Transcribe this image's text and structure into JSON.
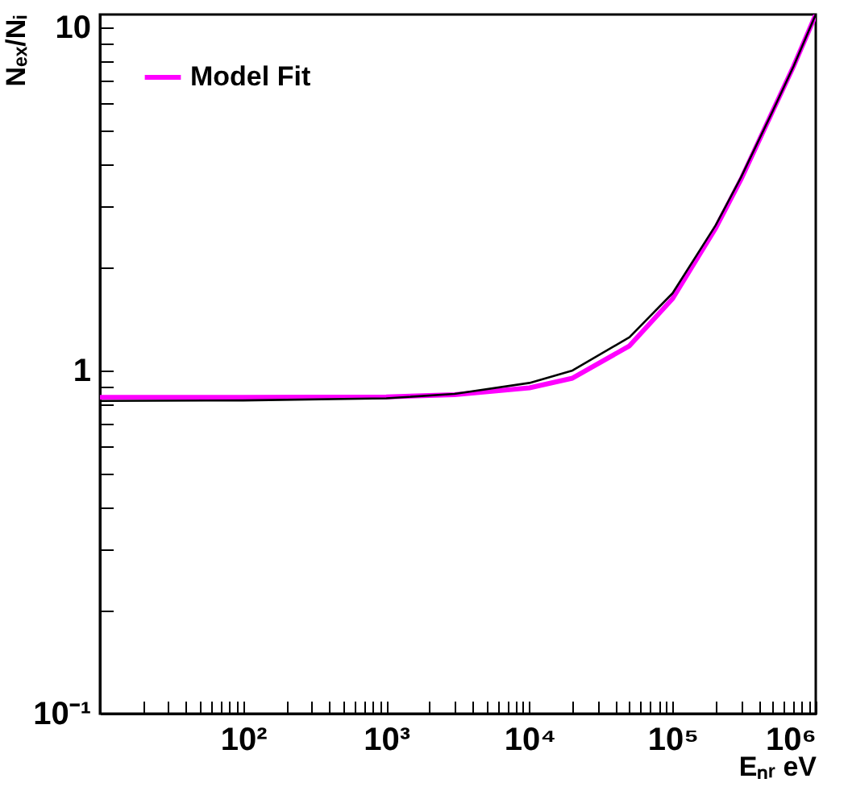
{
  "chart_data": {
    "type": "line",
    "xlabel": "Eₙᵣ eV",
    "ylabel": "Nₑₓ/Nᵢ",
    "log": "xy",
    "legend": "top left",
    "line_style": "solid",
    "marker": "none",
    "xlim": [
      10,
      1000000
    ],
    "ylim": [
      0.1,
      10.9
    ],
    "xticks": [
      {
        "value": 20,
        "label": null
      },
      {
        "value": 30,
        "label": null
      },
      {
        "value": 40,
        "label": null
      },
      {
        "value": 50,
        "label": null
      },
      {
        "value": 60,
        "label": null
      },
      {
        "value": 70,
        "label": null
      },
      {
        "value": 80,
        "label": null
      },
      {
        "value": 90,
        "label": null
      },
      {
        "value": 100,
        "label": "10²"
      },
      {
        "value": 200,
        "label": null
      },
      {
        "value": 300,
        "label": null
      },
      {
        "value": 400,
        "label": null
      },
      {
        "value": 500,
        "label": null
      },
      {
        "value": 600,
        "label": null
      },
      {
        "value": 700,
        "label": null
      },
      {
        "value": 800,
        "label": null
      },
      {
        "value": 900,
        "label": null
      },
      {
        "value": 1000,
        "label": "10³"
      },
      {
        "value": 2000,
        "label": null
      },
      {
        "value": 3000,
        "label": null
      },
      {
        "value": 4000,
        "label": null
      },
      {
        "value": 5000,
        "label": null
      },
      {
        "value": 6000,
        "label": null
      },
      {
        "value": 7000,
        "label": null
      },
      {
        "value": 8000,
        "label": null
      },
      {
        "value": 9000,
        "label": null
      },
      {
        "value": 10000,
        "label": "10⁴"
      },
      {
        "value": 20000,
        "label": null
      },
      {
        "value": 30000,
        "label": null
      },
      {
        "value": 40000,
        "label": null
      },
      {
        "value": 50000,
        "label": null
      },
      {
        "value": 60000,
        "label": null
      },
      {
        "value": 70000,
        "label": null
      },
      {
        "value": 80000,
        "label": null
      },
      {
        "value": 90000,
        "label": null
      },
      {
        "value": 100000,
        "label": "10⁵"
      },
      {
        "value": 200000,
        "label": null
      },
      {
        "value": 300000,
        "label": null
      },
      {
        "value": 400000,
        "label": null
      },
      {
        "value": 500000,
        "label": null
      },
      {
        "value": 600000,
        "label": null
      },
      {
        "value": 700000,
        "label": null
      },
      {
        "value": 800000,
        "label": null
      },
      {
        "value": 900000,
        "label": null
      },
      {
        "value": 1000000,
        "label": "10⁶"
      }
    ],
    "yticks": [
      {
        "value": 0.1,
        "label": "10⁻¹"
      },
      {
        "value": 0.2,
        "label": null
      },
      {
        "value": 0.3,
        "label": null
      },
      {
        "value": 0.4,
        "label": null
      },
      {
        "value": 0.5,
        "label": null
      },
      {
        "value": 0.6,
        "label": null
      },
      {
        "value": 0.7,
        "label": null
      },
      {
        "value": 0.8,
        "label": null
      },
      {
        "value": 0.9,
        "label": null
      },
      1,
      {
        "value": 2,
        "label": null
      },
      {
        "value": 3,
        "label": null
      },
      {
        "value": 4,
        "label": null
      },
      {
        "value": 5,
        "label": null
      },
      {
        "value": 6,
        "label": null
      },
      {
        "value": 7,
        "label": null
      },
      {
        "value": 8,
        "label": null
      },
      {
        "value": 9,
        "label": null
      },
      10
    ],
    "x": [
      10,
      100,
      1000,
      3000,
      10000,
      20000,
      50000,
      100000,
      200000,
      300000,
      500000,
      700000,
      1000000
    ],
    "series": [
      {
        "name": "Model Fit",
        "color": "#ff00ff",
        "values": [
          0.835,
          0.835,
          0.838,
          0.85,
          0.89,
          0.95,
          1.18,
          1.62,
          2.6,
          3.6,
          5.7,
          7.7,
          10.9
        ]
      },
      {
        "color": "#000000",
        "values": [
          0.815,
          0.818,
          0.83,
          0.855,
          0.92,
          1.0,
          1.25,
          1.68,
          2.65,
          3.65,
          5.7,
          7.7,
          10.9
        ]
      }
    ]
  }
}
